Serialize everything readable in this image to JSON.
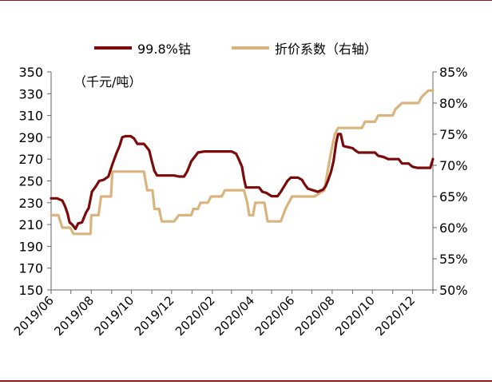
{
  "chart_data": {
    "type": "line",
    "unit_label": "（千元/吨）",
    "x_tick_labels": [
      "2019/06",
      "2019/08",
      "2019/10",
      "2019/12",
      "2020/02",
      "2020/04",
      "2020/06",
      "2020/08",
      "2020/10",
      "2020/12"
    ],
    "y_left": {
      "ticks": [
        150,
        170,
        190,
        210,
        230,
        250,
        270,
        290,
        310,
        330,
        350
      ],
      "lim": [
        150,
        350
      ]
    },
    "y_right": {
      "ticks": [
        "50%",
        "55%",
        "60%",
        "65%",
        "70%",
        "75%",
        "80%",
        "85%"
      ],
      "lim": [
        50,
        85
      ]
    },
    "series": [
      {
        "name": "99.8%钴",
        "axis": "left",
        "color": "#7b0a0a",
        "points": [
          [
            "2019/06/01",
            234
          ],
          [
            "2019/06/10",
            234
          ],
          [
            "2019/06/18",
            232
          ],
          [
            "2019/06/22",
            227
          ],
          [
            "2019/06/26",
            220
          ],
          [
            "2019/06/29",
            212
          ],
          [
            "2019/07/03",
            210
          ],
          [
            "2019/07/08",
            206
          ],
          [
            "2019/07/12",
            211
          ],
          [
            "2019/07/18",
            212
          ],
          [
            "2019/07/24",
            221
          ],
          [
            "2019/07/28",
            225
          ],
          [
            "2019/08/02",
            240
          ],
          [
            "2019/08/08",
            245
          ],
          [
            "2019/08/13",
            250
          ],
          [
            "2019/08/20",
            251
          ],
          [
            "2019/08/27",
            254
          ],
          [
            "2019/09/02",
            265
          ],
          [
            "2019/09/08",
            275
          ],
          [
            "2019/09/13",
            282
          ],
          [
            "2019/09/17",
            290
          ],
          [
            "2019/09/22",
            291
          ],
          [
            "2019/09/30",
            291
          ],
          [
            "2019/10/05",
            289
          ],
          [
            "2019/10/10",
            284
          ],
          [
            "2019/10/20",
            284
          ],
          [
            "2019/10/28",
            278
          ],
          [
            "2019/11/01",
            268
          ],
          [
            "2019/11/05",
            259
          ],
          [
            "2019/11/09",
            255
          ],
          [
            "2019/11/20",
            255
          ],
          [
            "2019/12/05",
            255
          ],
          [
            "2019/12/12",
            254
          ],
          [
            "2019/12/20",
            254
          ],
          [
            "2019/12/25",
            259
          ],
          [
            "2019/12/31",
            268
          ],
          [
            "2020/01/05",
            272
          ],
          [
            "2020/01/10",
            276
          ],
          [
            "2020/01/20",
            277
          ],
          [
            "2020/02/01",
            277
          ],
          [
            "2020/02/15",
            277
          ],
          [
            "2020/03/01",
            277
          ],
          [
            "2020/03/08",
            275
          ],
          [
            "2020/03/12",
            270
          ],
          [
            "2020/03/17",
            263
          ],
          [
            "2020/03/20",
            252
          ],
          [
            "2020/03/23",
            244
          ],
          [
            "2020/04/01",
            244
          ],
          [
            "2020/04/12",
            244
          ],
          [
            "2020/04/17",
            240
          ],
          [
            "2020/04/23",
            239
          ],
          [
            "2020/05/01",
            236
          ],
          [
            "2020/05/10",
            236
          ],
          [
            "2020/05/15",
            240
          ],
          [
            "2020/05/20",
            245
          ],
          [
            "2020/05/25",
            250
          ],
          [
            "2020/05/30",
            253
          ],
          [
            "2020/06/10",
            253
          ],
          [
            "2020/06/16",
            251
          ],
          [
            "2020/06/20",
            247
          ],
          [
            "2020/06/25",
            243
          ],
          [
            "2020/07/05",
            241
          ],
          [
            "2020/07/10",
            240
          ],
          [
            "2020/07/18",
            242
          ],
          [
            "2020/07/22",
            245
          ],
          [
            "2020/07/26",
            251
          ],
          [
            "2020/07/30",
            258
          ],
          [
            "2020/08/03",
            268
          ],
          [
            "2020/08/07",
            285
          ],
          [
            "2020/08/10",
            293
          ],
          [
            "2020/08/14",
            293
          ],
          [
            "2020/08/18",
            282
          ],
          [
            "2020/08/25",
            281
          ],
          [
            "2020/09/01",
            280
          ],
          [
            "2020/09/05",
            278
          ],
          [
            "2020/09/10",
            276
          ],
          [
            "2020/09/20",
            276
          ],
          [
            "2020/10/05",
            276
          ],
          [
            "2020/10/10",
            273
          ],
          [
            "2020/10/18",
            272
          ],
          [
            "2020/10/25",
            270
          ],
          [
            "2020/11/10",
            270
          ],
          [
            "2020/11/15",
            266
          ],
          [
            "2020/11/25",
            266
          ],
          [
            "2020/12/01",
            263
          ],
          [
            "2020/12/08",
            262
          ],
          [
            "2020/12/20",
            262
          ],
          [
            "2020/12/28",
            262
          ],
          [
            "2020/12/31",
            268
          ],
          [
            "2021/01/01",
            270
          ]
        ]
      },
      {
        "name": "折价系数（右轴）",
        "axis": "right",
        "color": "#d9b47f",
        "points": [
          [
            "2019/06/01",
            62
          ],
          [
            "2019/06/12",
            62
          ],
          [
            "2019/06/18",
            60
          ],
          [
            "2019/06/30",
            60
          ],
          [
            "2019/07/05",
            59
          ],
          [
            "2019/07/31",
            59
          ],
          [
            "2019/08/01",
            62
          ],
          [
            "2019/08/12",
            62
          ],
          [
            "2019/08/16",
            65
          ],
          [
            "2019/08/31",
            65
          ],
          [
            "2019/09/02",
            69
          ],
          [
            "2019/10/20",
            69
          ],
          [
            "2019/10/25",
            66
          ],
          [
            "2019/11/02",
            66
          ],
          [
            "2019/11/05",
            63
          ],
          [
            "2019/11/12",
            63
          ],
          [
            "2019/11/16",
            61
          ],
          [
            "2019/12/05",
            61
          ],
          [
            "2019/12/12",
            62
          ],
          [
            "2019/12/31",
            62
          ],
          [
            "2020/01/03",
            63
          ],
          [
            "2020/01/10",
            63
          ],
          [
            "2020/01/14",
            64
          ],
          [
            "2020/01/25",
            64
          ],
          [
            "2020/01/30",
            65
          ],
          [
            "2020/02/15",
            65
          ],
          [
            "2020/02/20",
            66
          ],
          [
            "2020/03/20",
            66
          ],
          [
            "2020/03/25",
            64
          ],
          [
            "2020/03/28",
            62
          ],
          [
            "2020/04/03",
            62
          ],
          [
            "2020/04/06",
            64
          ],
          [
            "2020/04/20",
            64
          ],
          [
            "2020/04/25",
            61
          ],
          [
            "2020/05/15",
            61
          ],
          [
            "2020/05/22",
            63
          ],
          [
            "2020/06/01",
            65
          ],
          [
            "2020/06/30",
            65
          ],
          [
            "2020/07/05",
            65
          ],
          [
            "2020/07/20",
            66
          ],
          [
            "2020/07/25",
            69
          ],
          [
            "2020/07/30",
            72
          ],
          [
            "2020/08/05",
            75
          ],
          [
            "2020/08/10",
            76
          ],
          [
            "2020/09/15",
            76
          ],
          [
            "2020/09/20",
            77
          ],
          [
            "2020/10/05",
            77
          ],
          [
            "2020/10/10",
            78
          ],
          [
            "2020/11/01",
            78
          ],
          [
            "2020/11/05",
            79
          ],
          [
            "2020/11/15",
            80
          ],
          [
            "2020/12/10",
            80
          ],
          [
            "2020/12/15",
            81
          ],
          [
            "2020/12/25",
            82
          ],
          [
            "2021/01/01",
            82
          ]
        ]
      }
    ],
    "legend_position": "top-center",
    "grid": false
  }
}
